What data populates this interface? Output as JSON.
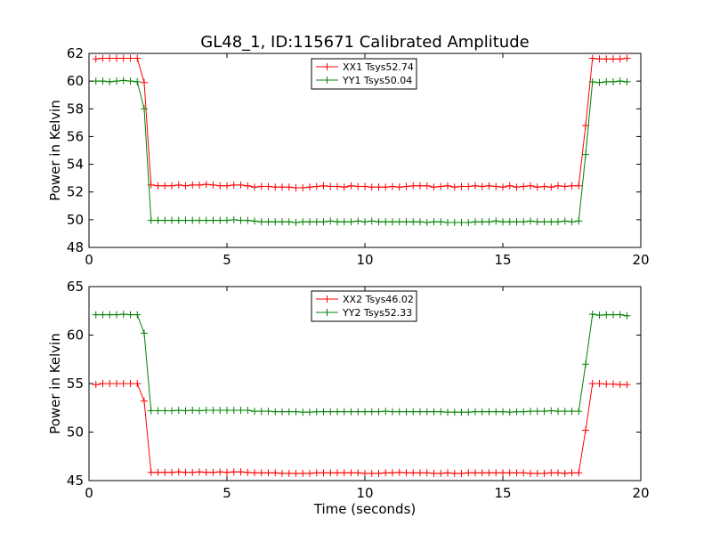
{
  "title": "GL48_1, ID:115671 Calibrated Amplitude",
  "chart_data": [
    {
      "type": "line",
      "title": "GL48_1, ID:115671 Calibrated Amplitude",
      "xlabel": "",
      "ylabel": "Power in Kelvin",
      "xlim": [
        0,
        20
      ],
      "ylim": [
        48,
        62
      ],
      "xticks": [
        0,
        5,
        10,
        15,
        20
      ],
      "yticks": [
        48,
        50,
        52,
        54,
        56,
        58,
        60,
        62
      ],
      "grid": false,
      "legend_position": "top-center",
      "x": [
        0.25,
        0.5,
        0.75,
        1.0,
        1.25,
        1.5,
        1.75,
        2.0,
        2.25,
        2.5,
        2.75,
        3.0,
        3.25,
        3.5,
        3.75,
        4.0,
        4.25,
        4.5,
        4.75,
        5.0,
        5.25,
        5.5,
        5.75,
        6.0,
        6.25,
        6.5,
        6.75,
        7.0,
        7.25,
        7.5,
        7.75,
        8.0,
        8.25,
        8.5,
        8.75,
        9.0,
        9.25,
        9.5,
        9.75,
        10.0,
        10.25,
        10.5,
        10.75,
        11.0,
        11.25,
        11.5,
        11.75,
        12.0,
        12.25,
        12.5,
        12.75,
        13.0,
        13.25,
        13.5,
        13.75,
        14.0,
        14.25,
        14.5,
        14.75,
        15.0,
        15.25,
        15.5,
        15.75,
        16.0,
        16.25,
        16.5,
        16.75,
        17.0,
        17.25,
        17.5,
        17.75,
        18.0,
        18.25,
        18.5,
        18.75,
        19.0,
        19.25,
        19.5
      ],
      "series": [
        {
          "name": "XX1 Tsys52.74",
          "color": "#ff0000",
          "values": [
            61.6,
            61.65,
            61.65,
            61.65,
            61.65,
            61.65,
            61.65,
            59.9,
            52.5,
            52.45,
            52.45,
            52.45,
            52.5,
            52.45,
            52.5,
            52.5,
            52.55,
            52.5,
            52.45,
            52.45,
            52.5,
            52.5,
            52.45,
            52.35,
            52.4,
            52.4,
            52.35,
            52.35,
            52.35,
            52.3,
            52.3,
            52.35,
            52.4,
            52.45,
            52.4,
            52.4,
            52.35,
            52.45,
            52.4,
            52.4,
            52.35,
            52.35,
            52.35,
            52.4,
            52.35,
            52.4,
            52.45,
            52.45,
            52.45,
            52.35,
            52.4,
            52.45,
            52.35,
            52.4,
            52.4,
            52.45,
            52.4,
            52.45,
            52.4,
            52.35,
            52.45,
            52.35,
            52.4,
            52.45,
            52.35,
            52.4,
            52.35,
            52.45,
            52.4,
            52.45,
            52.45,
            56.8,
            61.65,
            61.6,
            61.6,
            61.6,
            61.6,
            61.65
          ]
        },
        {
          "name": "YY1 Tsys50.04",
          "color": "#008000",
          "values": [
            60.0,
            60.0,
            59.95,
            60.0,
            60.05,
            60.0,
            59.95,
            58.0,
            49.95,
            49.95,
            49.95,
            49.95,
            49.95,
            49.95,
            49.95,
            49.95,
            49.95,
            49.95,
            49.95,
            49.95,
            50.0,
            49.95,
            49.95,
            49.9,
            49.85,
            49.85,
            49.85,
            49.85,
            49.85,
            49.8,
            49.85,
            49.85,
            49.85,
            49.85,
            49.9,
            49.85,
            49.85,
            49.85,
            49.9,
            49.85,
            49.9,
            49.85,
            49.85,
            49.85,
            49.85,
            49.85,
            49.85,
            49.85,
            49.8,
            49.85,
            49.85,
            49.8,
            49.8,
            49.8,
            49.8,
            49.85,
            49.85,
            49.85,
            49.9,
            49.85,
            49.85,
            49.85,
            49.85,
            49.9,
            49.85,
            49.85,
            49.85,
            49.85,
            49.9,
            49.85,
            49.9,
            54.7,
            59.95,
            59.9,
            59.95,
            59.95,
            60.0,
            59.95
          ]
        }
      ]
    },
    {
      "type": "line",
      "title": "",
      "xlabel": "Time (seconds)",
      "ylabel": "Power in Kelvin",
      "xlim": [
        0,
        20
      ],
      "ylim": [
        45,
        65
      ],
      "xticks": [
        0,
        5,
        10,
        15,
        20
      ],
      "yticks": [
        45,
        50,
        55,
        60,
        65
      ],
      "grid": false,
      "legend_position": "top-center",
      "x": [
        0.25,
        0.5,
        0.75,
        1.0,
        1.25,
        1.5,
        1.75,
        2.0,
        2.25,
        2.5,
        2.75,
        3.0,
        3.25,
        3.5,
        3.75,
        4.0,
        4.25,
        4.5,
        4.75,
        5.0,
        5.25,
        5.5,
        5.75,
        6.0,
        6.25,
        6.5,
        6.75,
        7.0,
        7.25,
        7.5,
        7.75,
        8.0,
        8.25,
        8.5,
        8.75,
        9.0,
        9.25,
        9.5,
        9.75,
        10.0,
        10.25,
        10.5,
        10.75,
        11.0,
        11.25,
        11.5,
        11.75,
        12.0,
        12.25,
        12.5,
        12.75,
        13.0,
        13.25,
        13.5,
        13.75,
        14.0,
        14.25,
        14.5,
        14.75,
        15.0,
        15.25,
        15.5,
        15.75,
        16.0,
        16.25,
        16.5,
        16.75,
        17.0,
        17.25,
        17.5,
        17.75,
        18.0,
        18.25,
        18.5,
        18.75,
        19.0,
        19.25,
        19.5
      ],
      "series": [
        {
          "name": "XX2 Tsys46.02",
          "color": "#ff0000",
          "values": [
            54.9,
            55.0,
            55.0,
            55.0,
            55.0,
            55.0,
            55.0,
            53.2,
            45.85,
            45.85,
            45.85,
            45.85,
            45.9,
            45.85,
            45.85,
            45.9,
            45.85,
            45.85,
            45.9,
            45.85,
            45.9,
            45.9,
            45.85,
            45.8,
            45.8,
            45.8,
            45.8,
            45.75,
            45.75,
            45.75,
            45.75,
            45.75,
            45.8,
            45.8,
            45.8,
            45.8,
            45.8,
            45.8,
            45.8,
            45.75,
            45.75,
            45.75,
            45.8,
            45.8,
            45.85,
            45.8,
            45.8,
            45.8,
            45.8,
            45.75,
            45.75,
            45.8,
            45.75,
            45.75,
            45.8,
            45.8,
            45.8,
            45.8,
            45.8,
            45.8,
            45.8,
            45.8,
            45.8,
            45.75,
            45.75,
            45.75,
            45.8,
            45.8,
            45.75,
            45.8,
            45.8,
            50.2,
            55.0,
            55.0,
            54.95,
            54.95,
            54.9,
            54.9
          ]
        },
        {
          "name": "YY2 Tsys52.33",
          "color": "#008000",
          "values": [
            62.1,
            62.1,
            62.1,
            62.1,
            62.15,
            62.1,
            62.1,
            60.2,
            52.2,
            52.2,
            52.2,
            52.2,
            52.25,
            52.2,
            52.25,
            52.2,
            52.25,
            52.25,
            52.25,
            52.25,
            52.25,
            52.25,
            52.25,
            52.15,
            52.15,
            52.15,
            52.1,
            52.1,
            52.1,
            52.1,
            52.05,
            52.05,
            52.1,
            52.1,
            52.1,
            52.1,
            52.1,
            52.1,
            52.1,
            52.1,
            52.1,
            52.1,
            52.15,
            52.1,
            52.1,
            52.1,
            52.1,
            52.1,
            52.1,
            52.1,
            52.1,
            52.05,
            52.05,
            52.05,
            52.05,
            52.1,
            52.1,
            52.1,
            52.1,
            52.1,
            52.05,
            52.1,
            52.1,
            52.15,
            52.15,
            52.15,
            52.2,
            52.15,
            52.15,
            52.15,
            52.15,
            57.0,
            62.15,
            62.05,
            62.1,
            62.1,
            62.1,
            62.0
          ]
        }
      ]
    }
  ]
}
